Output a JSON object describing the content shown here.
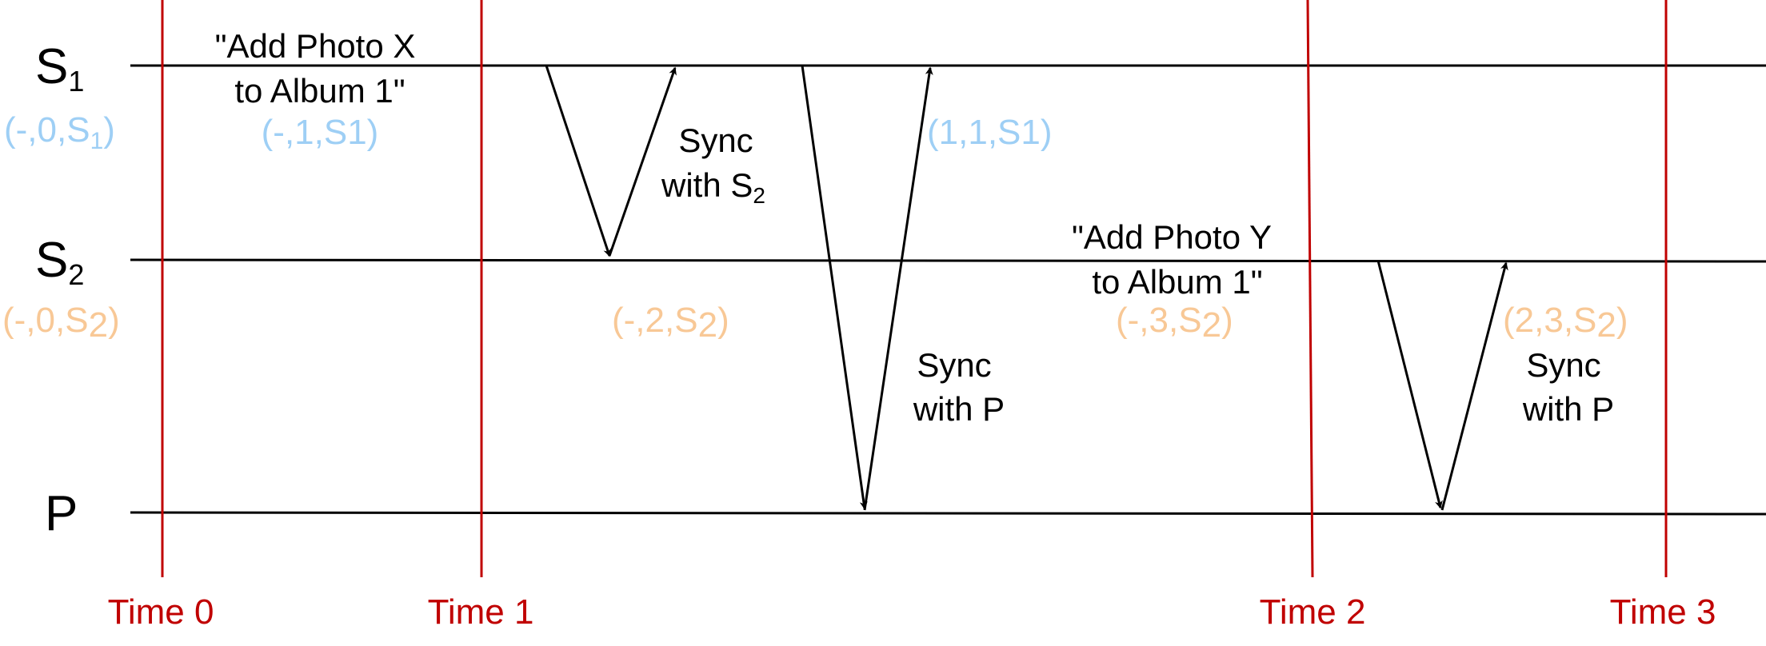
{
  "colors": {
    "line": "#000000",
    "time_line": "#c00000",
    "time_label": "#c00000",
    "s1_version": "#9ecff5",
    "s2_version": "#f8c896"
  },
  "processes": [
    {
      "name": "S",
      "sub": "1"
    },
    {
      "name": "S",
      "sub": "2"
    },
    {
      "name": "P",
      "sub": ""
    }
  ],
  "time_labels": [
    "Time 0",
    "Time 1",
    "Time 2",
    "Time 3"
  ],
  "initial_versions": [
    {
      "main": "(-,0,S",
      "sub": "1",
      "tail": ")"
    },
    {
      "main": "(-,0,S",
      "sub": "2",
      "tail": ")"
    }
  ],
  "events": {
    "add_x": {
      "line1": "\"Add Photo X",
      "line2": "to Album 1\""
    },
    "add_y": {
      "line1": "\"Add Photo Y",
      "line2": "to Album 1\""
    }
  },
  "versions": {
    "s1_after_x": "(-,1,S1)",
    "s2_after_sync": {
      "main": "(-,2,S",
      "sub": "2",
      "tail": ")"
    },
    "s1_after_p": "(1,1,S1)",
    "s2_after_y": {
      "main": "(-,3,S",
      "sub": "2",
      "tail": ")"
    },
    "s2_final": {
      "main": "(2,3,S",
      "sub": "2",
      "tail": ")"
    }
  },
  "syncs": {
    "s1_s2": {
      "line1": "Sync",
      "line2_main": "with S",
      "line2_sub": "2"
    },
    "s1_p": {
      "line1": "Sync",
      "line2": "with P"
    },
    "s2_p": {
      "line1": "Sync",
      "line2": "with P"
    }
  }
}
